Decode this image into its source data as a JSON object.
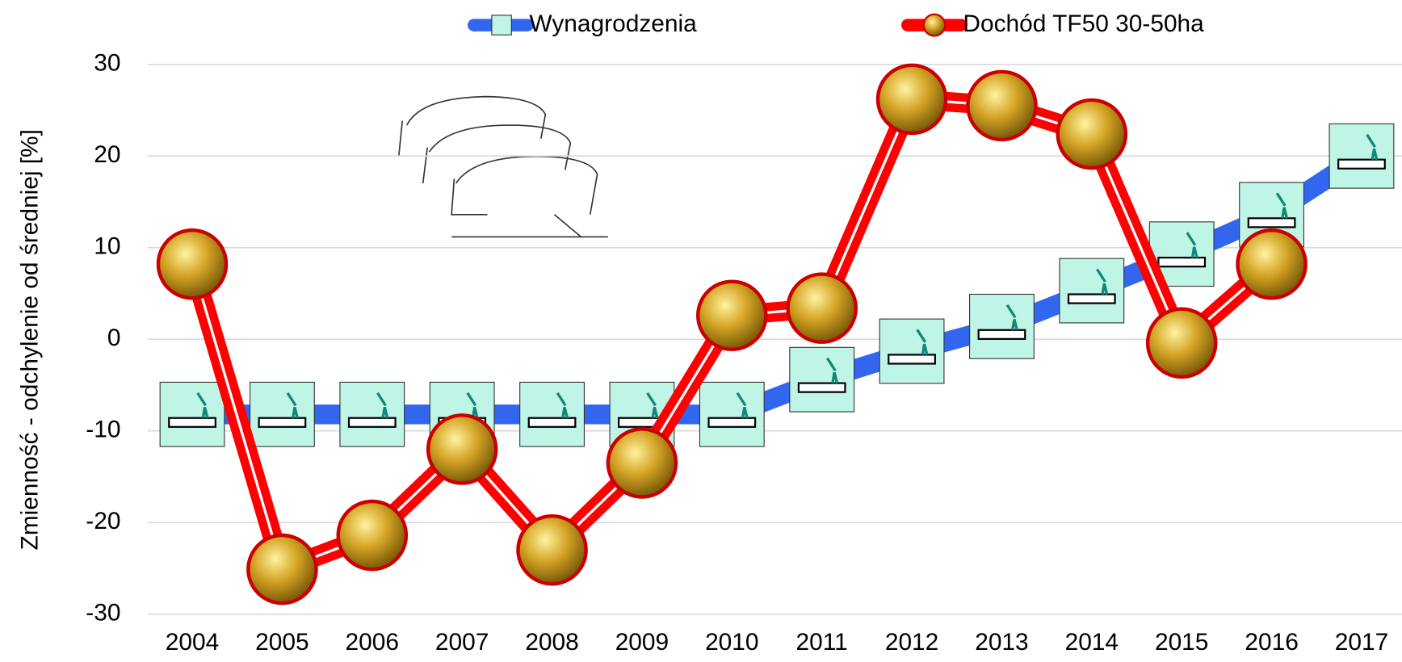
{
  "chart_data": {
    "type": "line",
    "y_label": "Zmienność - odchylenie od średniej [%]",
    "categories": [
      "2004",
      "2005",
      "2006",
      "2007",
      "2008",
      "2009",
      "2010",
      "2011",
      "2012",
      "2013",
      "2014",
      "2015",
      "2016",
      "2017"
    ],
    "series": [
      {
        "name": "Wynagrodzenia",
        "color": "#3366ee",
        "values": [
          -8.2,
          -8.2,
          -8.2,
          -8.2,
          -8.2,
          -8.2,
          -8.2,
          -4.4,
          -1.3,
          1.4,
          5.3,
          9.3,
          13.6,
          20
        ]
      },
      {
        "name": "Dochód TF50 30-50ha",
        "color": "#ff0000",
        "values": [
          8.2,
          -25.1,
          -21.4,
          -12,
          -23,
          -13.5,
          2.6,
          3.4,
          26.2,
          25.5,
          22.4,
          -0.4,
          8.2,
          null
        ]
      }
    ],
    "ylim": [
      -30,
      30
    ],
    "yticks": [
      -30,
      -20,
      -10,
      0,
      10,
      20,
      30
    ],
    "grid": true
  }
}
